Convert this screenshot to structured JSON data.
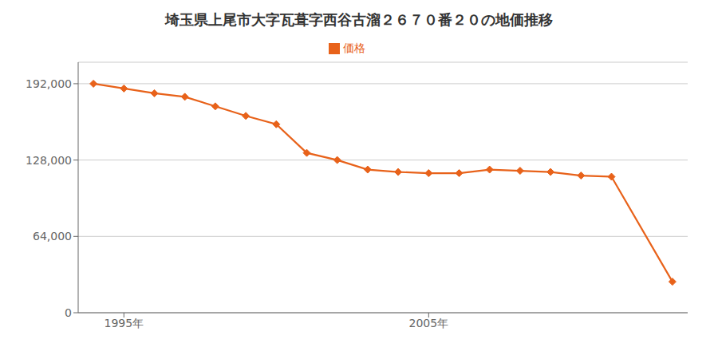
{
  "chart_data": {
    "type": "line",
    "title": "埼玉県上尾市大字瓦葺字西谷古溜２６７０番２０の地価推移",
    "x": [
      1994,
      1995,
      1996,
      1997,
      1998,
      1999,
      2000,
      2001,
      2002,
      2003,
      2004,
      2005,
      2006,
      2007,
      2008,
      2009,
      2010,
      2011,
      2013
    ],
    "series": [
      {
        "name": "価格",
        "color": "#e8621a",
        "marker": "diamond",
        "values": [
          192000,
          188000,
          184000,
          181000,
          173000,
          165000,
          158000,
          134000,
          128000,
          120000,
          118000,
          117000,
          117000,
          120000,
          119000,
          118000,
          115000,
          114000,
          26000
        ]
      }
    ],
    "xlim": [
      1993.5,
      2013.5
    ],
    "xticks": [
      {
        "value": 1995,
        "label": "1995年"
      },
      {
        "value": 2005,
        "label": "2005年"
      }
    ],
    "ylim": [
      0,
      210000
    ],
    "yticks": [
      0,
      {
        "value": 64000,
        "label": "64,000"
      },
      {
        "value": 128000,
        "label": "128,000"
      },
      {
        "value": 192000,
        "label": "192,000"
      }
    ],
    "grid": "y",
    "legend": "top"
  }
}
